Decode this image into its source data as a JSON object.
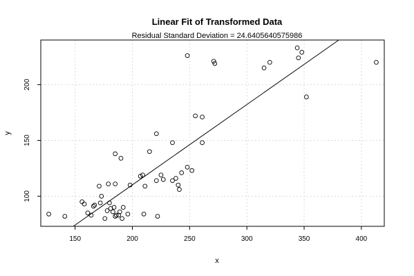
{
  "chart_data": {
    "type": "scatter",
    "title": "Linear Fit of Transformed Data",
    "subtitle": "Residual Standard Deviation =  24.6405640575986",
    "xlabel": "x",
    "ylabel": "y",
    "xlim": [
      120,
      420
    ],
    "ylim": [
      73,
      240
    ],
    "x_ticks": [
      150,
      200,
      250,
      300,
      350,
      400
    ],
    "y_ticks": [
      100,
      150,
      200
    ],
    "grid": true,
    "points": [
      {
        "x": 127,
        "y": 84
      },
      {
        "x": 141,
        "y": 82
      },
      {
        "x": 156,
        "y": 95
      },
      {
        "x": 158,
        "y": 93
      },
      {
        "x": 161,
        "y": 85
      },
      {
        "x": 164,
        "y": 83
      },
      {
        "x": 166,
        "y": 91
      },
      {
        "x": 167,
        "y": 92
      },
      {
        "x": 171,
        "y": 109
      },
      {
        "x": 172,
        "y": 94
      },
      {
        "x": 173,
        "y": 100
      },
      {
        "x": 176,
        "y": 80
      },
      {
        "x": 178,
        "y": 87
      },
      {
        "x": 179,
        "y": 111
      },
      {
        "x": 180,
        "y": 94
      },
      {
        "x": 181,
        "y": 89
      },
      {
        "x": 183,
        "y": 86
      },
      {
        "x": 184,
        "y": 90
      },
      {
        "x": 185,
        "y": 82
      },
      {
        "x": 185,
        "y": 111
      },
      {
        "x": 185,
        "y": 138
      },
      {
        "x": 186,
        "y": 83
      },
      {
        "x": 188,
        "y": 83
      },
      {
        "x": 189,
        "y": 86
      },
      {
        "x": 190,
        "y": 134
      },
      {
        "x": 191,
        "y": 80
      },
      {
        "x": 192,
        "y": 90
      },
      {
        "x": 196,
        "y": 84
      },
      {
        "x": 198,
        "y": 110
      },
      {
        "x": 207,
        "y": 118
      },
      {
        "x": 209,
        "y": 119
      },
      {
        "x": 210,
        "y": 84
      },
      {
        "x": 211,
        "y": 109
      },
      {
        "x": 215,
        "y": 140
      },
      {
        "x": 221,
        "y": 156
      },
      {
        "x": 221,
        "y": 114
      },
      {
        "x": 222,
        "y": 82
      },
      {
        "x": 225,
        "y": 119
      },
      {
        "x": 227,
        "y": 115
      },
      {
        "x": 235,
        "y": 114
      },
      {
        "x": 235,
        "y": 148
      },
      {
        "x": 238,
        "y": 116
      },
      {
        "x": 240,
        "y": 110
      },
      {
        "x": 241,
        "y": 106
      },
      {
        "x": 243,
        "y": 121
      },
      {
        "x": 248,
        "y": 126
      },
      {
        "x": 248,
        "y": 226
      },
      {
        "x": 252,
        "y": 123
      },
      {
        "x": 255,
        "y": 172
      },
      {
        "x": 261,
        "y": 171
      },
      {
        "x": 261,
        "y": 148
      },
      {
        "x": 271,
        "y": 221
      },
      {
        "x": 272,
        "y": 219
      },
      {
        "x": 315,
        "y": 215
      },
      {
        "x": 320,
        "y": 220
      },
      {
        "x": 344,
        "y": 233
      },
      {
        "x": 345,
        "y": 224
      },
      {
        "x": 348,
        "y": 229
      },
      {
        "x": 352,
        "y": 189
      },
      {
        "x": 413,
        "y": 220
      }
    ],
    "fit_line": {
      "x": [
        148.4,
        380.3
      ],
      "y": [
        73,
        240
      ]
    }
  }
}
